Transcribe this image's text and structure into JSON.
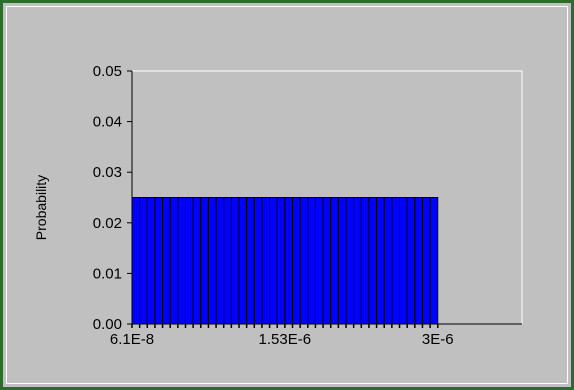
{
  "colors": {
    "frame_border": "#2e6b2e",
    "background": "#c0c0c0",
    "plot_background": "#c0c0c0",
    "plot_border": "#ffffff",
    "bar_fill": "#0000ff",
    "bar_stroke": "#000000"
  },
  "chart_data": {
    "type": "bar",
    "title": "",
    "xlabel": "",
    "ylabel": "Probability",
    "ylim": [
      0,
      0.05
    ],
    "yticks": [
      "0.00",
      "0.01",
      "0.02",
      "0.03",
      "0.04",
      "0.05"
    ],
    "ytick_values": [
      0,
      0.01,
      0.02,
      0.03,
      0.04,
      0.05
    ],
    "xticks": [
      "6.1E-8",
      "1.53E-6",
      "3E-6"
    ],
    "xtick_values": [
      6.1e-08,
      1.53e-06,
      3e-06
    ],
    "xlim": [
      6.1e-08,
      3.81e-06
    ],
    "bin_count": 40,
    "bin_start": 6.1e-08,
    "bin_end": 3e-06,
    "bar_value": 0.025,
    "grid": false,
    "legend": "none"
  }
}
